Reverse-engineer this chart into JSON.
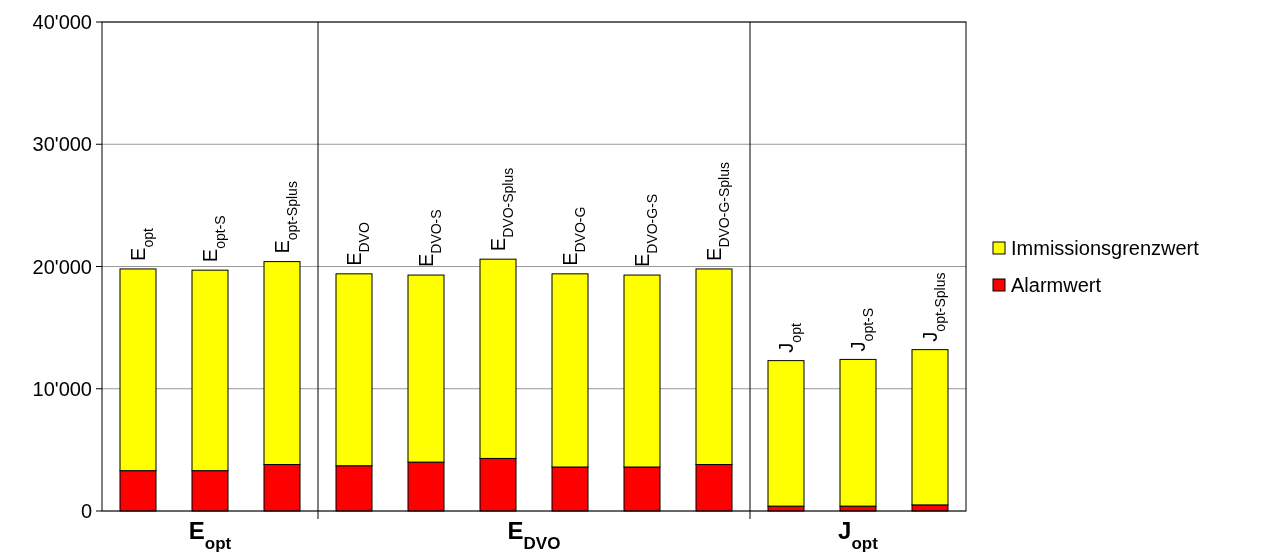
{
  "chart_data": {
    "type": "bar",
    "stacked": true,
    "categories": [
      "E$_{opt}$",
      "E$_{opt-S}$",
      "E$_{opt-Splus}$",
      "E$_{DVO}$",
      "E$_{DVO-S}$",
      "E$_{DVO-Splus}$",
      "E$_{DVO-G}$",
      "E$_{DVO-G-S}$",
      "E$_{DVO-G-Splus}$",
      "J$_{opt}$",
      "J$_{opt-S}$",
      "J$_{opt-Splus}$"
    ],
    "series": [
      {
        "name": "Alarmwert",
        "color": "#ff0000",
        "values": [
          3300,
          3300,
          3800,
          3700,
          4000,
          4300,
          3600,
          3600,
          3800,
          400,
          400,
          500
        ]
      },
      {
        "name": "Immissionsgrenzwert",
        "color": "#ffff00",
        "values": [
          16500,
          16400,
          16600,
          15700,
          15300,
          16300,
          15800,
          15700,
          16000,
          11900,
          12000,
          12700
        ]
      }
    ],
    "ylim": [
      0,
      40000
    ],
    "yticks": [
      {
        "value": 0,
        "label": "0"
      },
      {
        "value": 10000,
        "label": "10'000"
      },
      {
        "value": 20000,
        "label": "20'000"
      },
      {
        "value": 30000,
        "label": "30'000"
      },
      {
        "value": 40000,
        "label": "40'000"
      }
    ],
    "grid": "y",
    "legend": "right",
    "annotations": [
      "E$_{opt}$",
      "E$_{DVO}$",
      "J$_{opt}$"
    ]
  }
}
